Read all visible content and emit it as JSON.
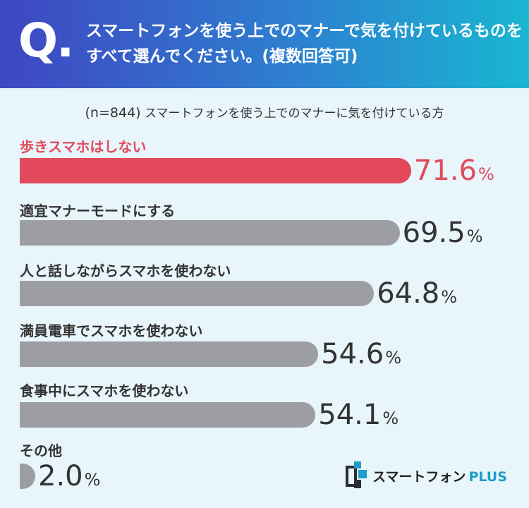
{
  "header": {
    "q_letter": "Q.",
    "question": "スマートフォンを使う上でのマナーで気を付けているものをすべて選んでください。(複数回答可)"
  },
  "subtitle": {
    "n_label": "(n=844)",
    "text": "スマートフォンを使う上でのマナーに気を付けている方"
  },
  "chart_data": {
    "type": "bar",
    "orientation": "horizontal",
    "unit": "%",
    "categories": [
      "歩きスマホはしない",
      "適宜マナーモードにする",
      "人と話しながらスマホを使わない",
      "満員電車でスマホを使わない",
      "食事中にスマホを使わない",
      "その他"
    ],
    "values": [
      71.6,
      69.5,
      64.8,
      54.6,
      54.1,
      2.0
    ],
    "value_labels": [
      "71.6",
      "69.5",
      "64.8",
      "54.6",
      "54.1",
      "2.0"
    ],
    "highlight_index": 0,
    "colors": {
      "highlight": "#e24a5b",
      "default": "#9d9ea3"
    }
  },
  "logo": {
    "name": "スマートフォン",
    "suffix": "PLUS",
    "mark_colors": [
      "#2a2d33",
      "#1b9ec9"
    ]
  }
}
